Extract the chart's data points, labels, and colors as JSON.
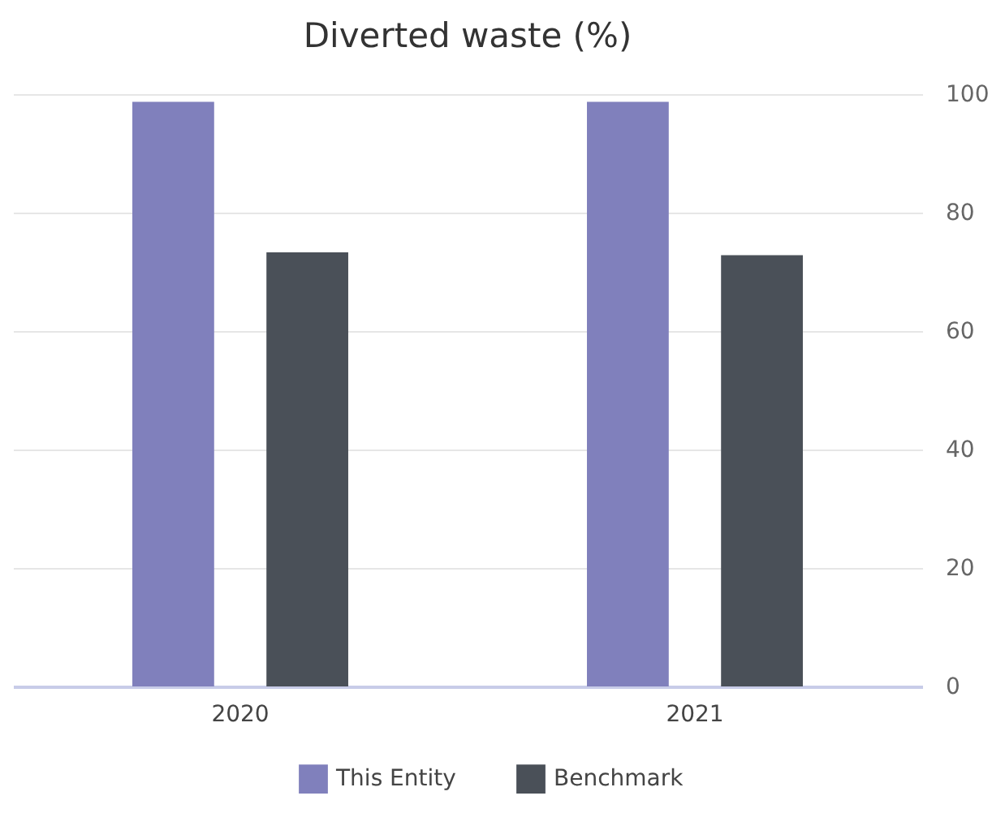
{
  "chart_data": {
    "type": "bar",
    "title": "Diverted waste (%)",
    "categories": [
      "2020",
      "2021"
    ],
    "series": [
      {
        "name": "This Entity",
        "color": "#8080bc",
        "values": [
          98.7,
          98.7
        ]
      },
      {
        "name": "Benchmark",
        "color": "#4a5058",
        "values": [
          73.3,
          72.8
        ]
      }
    ],
    "ylim": [
      0,
      100
    ],
    "yticks": [
      0,
      20,
      40,
      60,
      80,
      100
    ],
    "grid": "y",
    "legend": "bottom"
  }
}
